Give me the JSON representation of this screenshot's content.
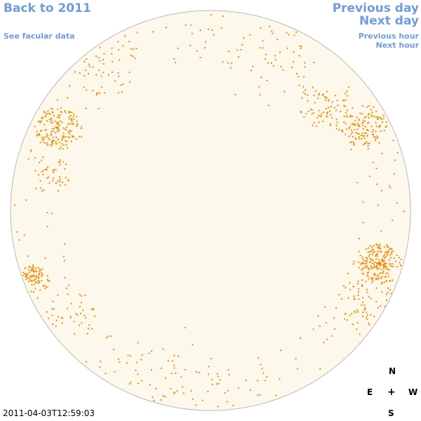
{
  "nav": {
    "back_label": "Back to 2011",
    "facular_label": "See facular data",
    "prev_day_label": "Previous day",
    "next_day_label": "Next day",
    "prev_hour_label": "Previous hour",
    "next_hour_label": "Next hour"
  },
  "timestamp": "2011-04-03T12:59:03",
  "compass": {
    "north": "N",
    "east": "E",
    "center": "+",
    "west": "W",
    "south": "S"
  },
  "colors": {
    "disk_fill": "#fdf8ec",
    "disk_border": "#b9b9b9",
    "spot_color": "#f08c00",
    "link_color": "#6f9be0"
  }
}
